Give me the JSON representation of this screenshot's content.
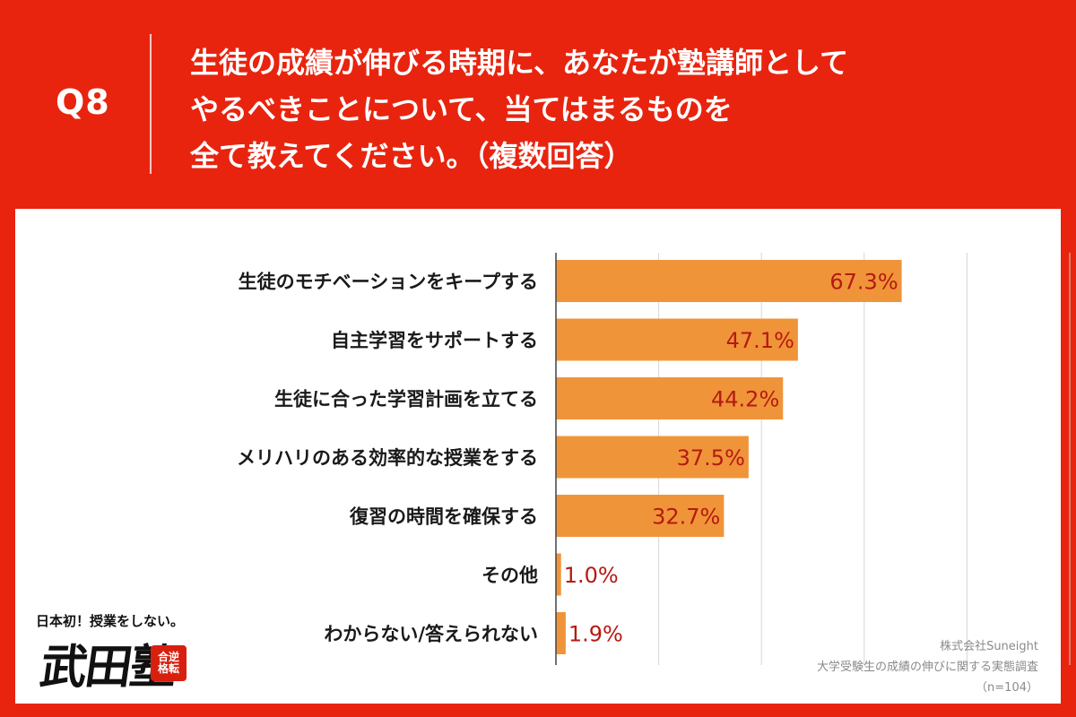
{
  "header": {
    "q_label": "Q8",
    "question_lines": [
      "生徒の成績が伸びる時期に、あなたが塾講師として",
      "やるべきことについて、当てはまるものを",
      "全て教えてください。（複数回答）"
    ]
  },
  "chart_data": {
    "type": "bar",
    "orientation": "horizontal",
    "categories": [
      "生徒のモチベーションをキープする",
      "自主学習をサポートする",
      "生徒に合った学習計画を立てる",
      "メリハリのある効率的な授業をする",
      "復習の時間を確保する",
      "その他",
      "わからない/答えられない"
    ],
    "values": [
      67.3,
      47.1,
      44.2,
      37.5,
      32.7,
      1.0,
      1.9
    ],
    "value_labels": [
      "67.3%",
      "47.1%",
      "44.2%",
      "37.5%",
      "32.7%",
      "1.0%",
      "1.9%"
    ],
    "xlim": [
      0,
      100
    ],
    "grid": true,
    "bar_color": "#f0943a",
    "label_color": "#b51a12"
  },
  "logo": {
    "tagline": "日本初！授業をしない。",
    "name": "武田塾",
    "stamp_line1": "合逆",
    "stamp_line2": "格転"
  },
  "source": {
    "company": "株式会社Suneight",
    "survey": "大学受験生の成績の伸びに関する実態調査",
    "sample": "（n=104）"
  },
  "colors": {
    "background": "#e8240f",
    "panel": "#ffffff",
    "bar": "#f0943a"
  }
}
